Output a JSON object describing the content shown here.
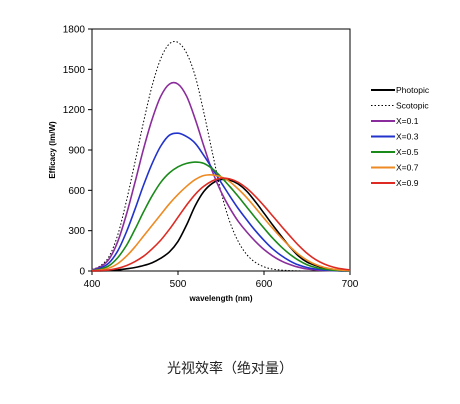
{
  "chart_data": {
    "type": "line",
    "title": "",
    "xlabel": "wavelength (nm)",
    "ylabel": "Efficacy (lm/W)",
    "xlim": [
      400,
      700
    ],
    "ylim": [
      0,
      1800
    ],
    "x_ticks": [
      400,
      500,
      600,
      700
    ],
    "y_ticks": [
      0,
      300,
      600,
      900,
      1200,
      1500,
      1800
    ],
    "grid": false,
    "legend_position": "right",
    "x": [
      400,
      410,
      420,
      430,
      440,
      450,
      460,
      470,
      480,
      490,
      500,
      510,
      520,
      530,
      540,
      550,
      560,
      570,
      580,
      590,
      600,
      610,
      620,
      630,
      640,
      650,
      660,
      670,
      680,
      690,
      700
    ],
    "series": [
      {
        "name": "Photopic",
        "color": "#000000",
        "dash": "solid",
        "values": [
          0,
          1,
          3,
          8,
          16,
          26,
          41,
          62,
          95,
          142,
          220,
          343,
          486,
          591,
          652,
          680,
          676,
          647,
          593,
          515,
          430,
          343,
          260,
          180,
          112,
          66,
          41,
          22,
          10,
          5,
          2
        ]
      },
      {
        "name": "Scotopic",
        "color": "#000000",
        "dash": "dotted",
        "values": [
          10,
          40,
          110,
          270,
          520,
          810,
          1110,
          1380,
          1580,
          1690,
          1700,
          1620,
          1450,
          1180,
          880,
          590,
          370,
          220,
          122,
          64,
          31,
          14,
          7,
          3,
          1,
          0,
          0,
          0,
          0,
          0,
          0
        ]
      },
      {
        "name": "X=0.1",
        "color": "#8b2c9c",
        "dash": "solid",
        "values": [
          8,
          32,
          90,
          220,
          420,
          660,
          910,
          1130,
          1300,
          1390,
          1390,
          1300,
          1130,
          930,
          740,
          590,
          470,
          370,
          290,
          220,
          160,
          112,
          75,
          48,
          28,
          15,
          8,
          4,
          2,
          1,
          0
        ]
      },
      {
        "name": "X=0.3",
        "color": "#2233cc",
        "dash": "solid",
        "values": [
          5,
          22,
          62,
          150,
          290,
          460,
          640,
          800,
          930,
          1010,
          1025,
          1000,
          950,
          860,
          760,
          660,
          560,
          465,
          380,
          300,
          228,
          165,
          115,
          75,
          45,
          26,
          14,
          7,
          3,
          1,
          0
        ]
      },
      {
        "name": "X=0.5",
        "color": "#1a8a1a",
        "dash": "solid",
        "values": [
          3,
          14,
          40,
          100,
          190,
          310,
          440,
          560,
          660,
          730,
          775,
          800,
          810,
          800,
          760,
          700,
          630,
          555,
          475,
          395,
          318,
          245,
          180,
          125,
          80,
          47,
          26,
          14,
          6,
          3,
          1
        ]
      },
      {
        "name": "X=0.7",
        "color": "#ee8a22",
        "dash": "solid",
        "values": [
          2,
          8,
          22,
          55,
          110,
          180,
          260,
          340,
          420,
          500,
          570,
          630,
          680,
          710,
          715,
          700,
          665,
          610,
          545,
          470,
          393,
          318,
          248,
          182,
          125,
          80,
          48,
          27,
          14,
          7,
          3
        ]
      },
      {
        "name": "X=0.9",
        "color": "#dd2a22",
        "dash": "solid",
        "values": [
          1,
          3,
          8,
          20,
          40,
          70,
          110,
          165,
          230,
          310,
          400,
          490,
          570,
          630,
          670,
          690,
          685,
          660,
          615,
          555,
          485,
          410,
          335,
          262,
          192,
          132,
          85,
          52,
          30,
          16,
          8
        ]
      }
    ]
  },
  "caption": "光视效率（绝对量）"
}
